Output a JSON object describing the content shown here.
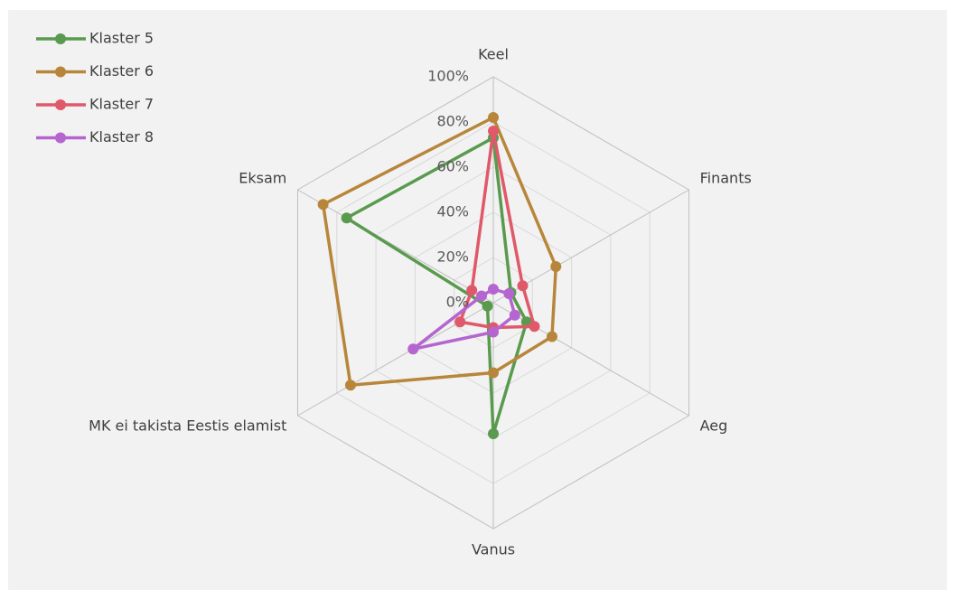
{
  "chart_data": {
    "type": "radar",
    "categories": [
      "Keel",
      "Finants",
      "Aeg",
      "Vanus",
      "MK ei takista Eestis elamist",
      "Eksam"
    ],
    "series": [
      {
        "name": "Klaster 5",
        "color": "#5a9a4f",
        "values": [
          73,
          9,
          17,
          58,
          3,
          75
        ]
      },
      {
        "name": "Klaster 6",
        "color": "#b8863b",
        "values": [
          82,
          32,
          30,
          31,
          73,
          87
        ]
      },
      {
        "name": "Klaster 7",
        "color": "#e0596a",
        "values": [
          76,
          15,
          21,
          11,
          17,
          11
        ]
      },
      {
        "name": "Klaster 8",
        "color": "#b565d0",
        "values": [
          6,
          8,
          11,
          13,
          41,
          6
        ]
      }
    ],
    "ylim": [
      0,
      100
    ],
    "yticks": [
      {
        "value": 0,
        "label": "0%"
      },
      {
        "value": 20,
        "label": "20%"
      },
      {
        "value": 40,
        "label": "40%"
      },
      {
        "value": 60,
        "label": "60%"
      },
      {
        "value": 80,
        "label": "80%"
      },
      {
        "value": 100,
        "label": "100%"
      }
    ],
    "grid": true,
    "legend": "top-left"
  }
}
